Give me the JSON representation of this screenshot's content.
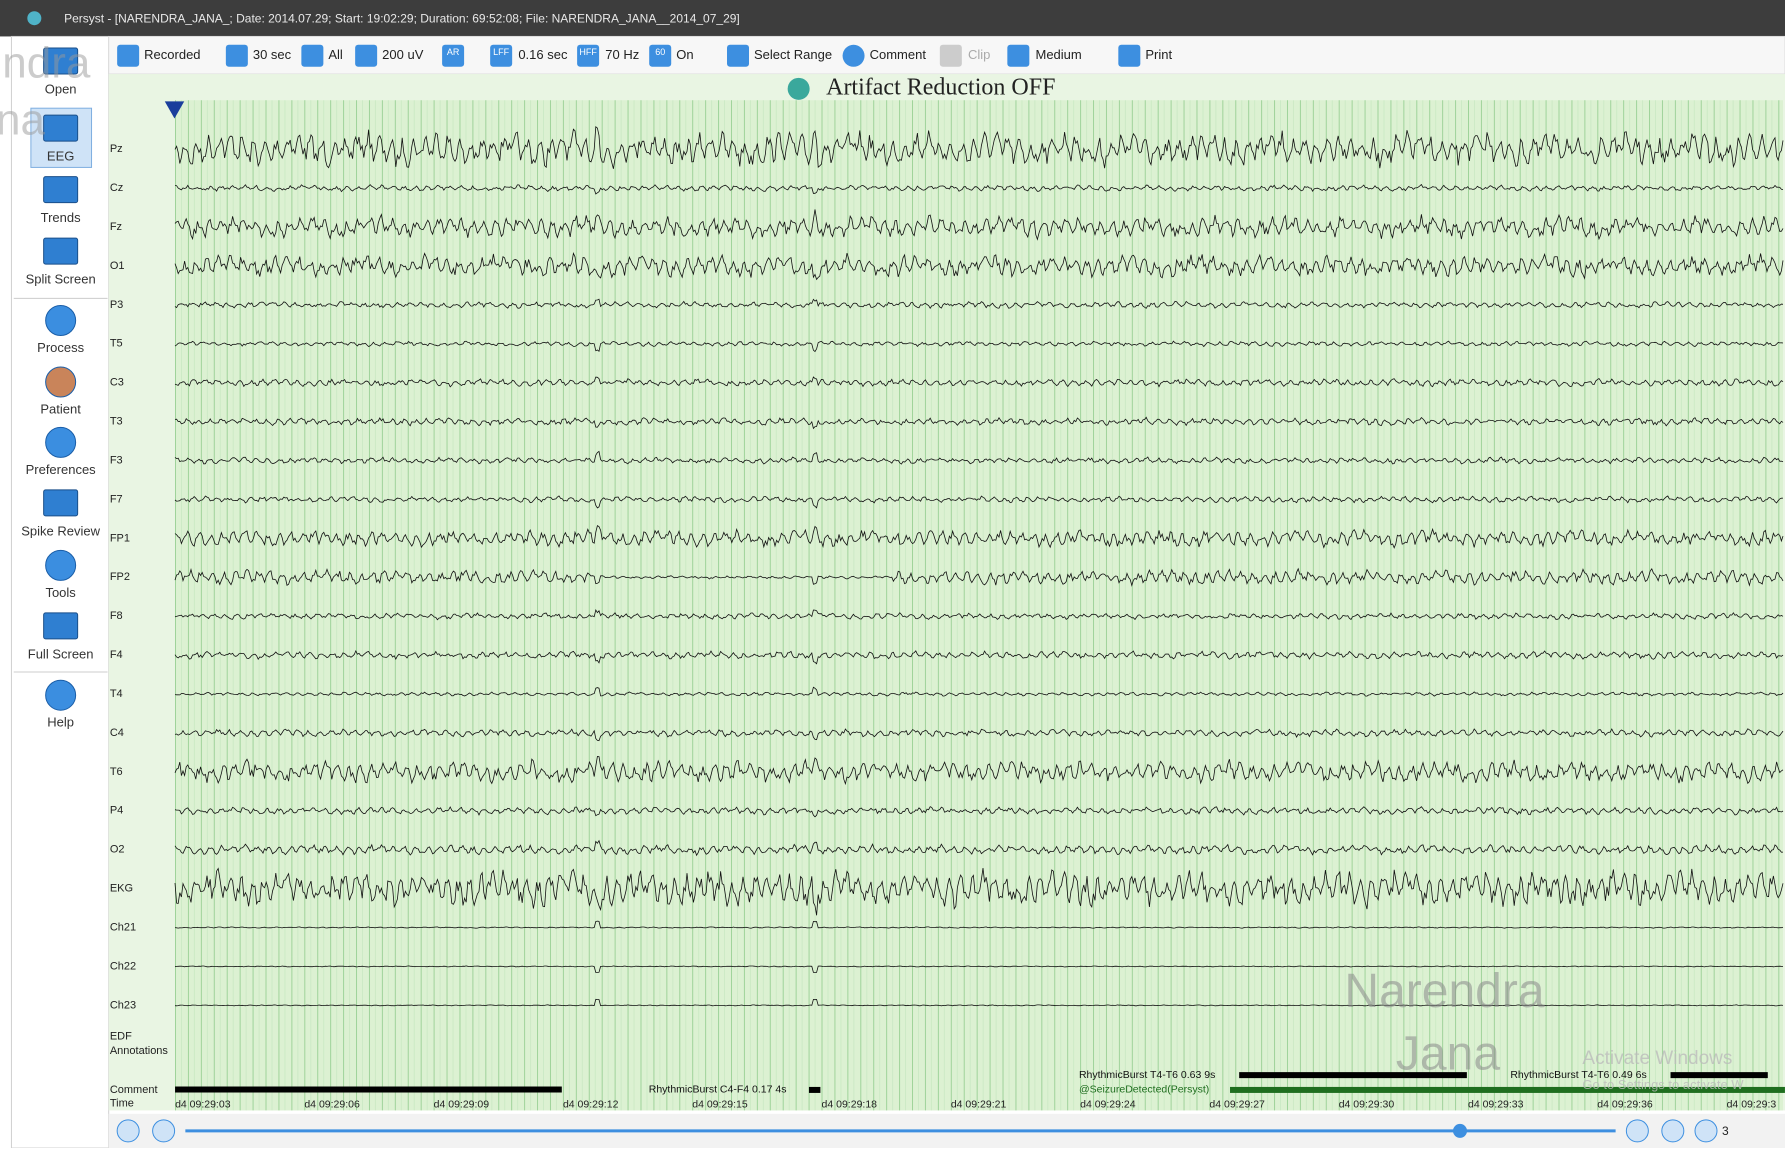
{
  "title_bar": "Persyst - [NARENDRA_JANA_; Date: 2014.07.29; Start: 19:02:29; Duration: 69:52:08; File: NARENDRA_JANA__2014_07_29]",
  "sidebar": [
    "Open",
    "EEG",
    "Trends",
    "Split Screen",
    "Process",
    "Patient",
    "Preferences",
    "Spike Review",
    "Tools",
    "Full Screen",
    "Help"
  ],
  "sidebar_watermark": [
    "ndra",
    "na"
  ],
  "toolbar": [
    {
      "label": "Recorded"
    },
    {
      "label": "30 sec"
    },
    {
      "label": "All"
    },
    {
      "label": "200 uV"
    },
    {
      "icon_text": "AR"
    },
    {
      "icon_text": "LFF",
      "label": "0.16 sec"
    },
    {
      "icon_text": "HFF",
      "label": "70 Hz"
    },
    {
      "icon_text": "60",
      "label": "On"
    },
    {
      "label": "Select Range"
    },
    {
      "label": "Comment"
    },
    {
      "label": "Clip"
    },
    {
      "label": "Medium"
    },
    {
      "label": "Print"
    }
  ],
  "heading": "Artifact Reduction OFF",
  "channels": [
    "Pz",
    "Cz",
    "Fz",
    "O1",
    "P3",
    "T5",
    "C3",
    "T3",
    "F3",
    "F7",
    "FP1",
    "FP2",
    "F8",
    "F4",
    "T4",
    "C4",
    "T6",
    "P4",
    "O2",
    "EKG",
    "Ch21",
    "Ch22",
    "Ch23"
  ],
  "annotation_row": [
    "EDF",
    "Annotations"
  ],
  "comment_row": "Comment",
  "time_row": "Time",
  "times": [
    "d4 09:29:03",
    "d4 09:29:06",
    "d4 09:29:09",
    "d4 09:29:12",
    "d4 09:29:15",
    "d4 09:29:18",
    "d4 09:29:21",
    "d4 09:29:24",
    "d4 09:29:27",
    "d4 09:29:30",
    "d4 09:29:33",
    "d4 09:29:36",
    "d4 09:29:3"
  ],
  "events": [
    "RhythmicBurst C4-F4 0.17 4s",
    "RhythmicBurst T4-T6 0.63 9s",
    "@SeizureDetected(Persyst)",
    "RhythmicBurst T4-T6 0.49 6s"
  ],
  "watermark": [
    "Narendra",
    "Jana"
  ],
  "activate": [
    "Activate Windows",
    "Go to Settings to activate W"
  ],
  "page_indicator": "3"
}
